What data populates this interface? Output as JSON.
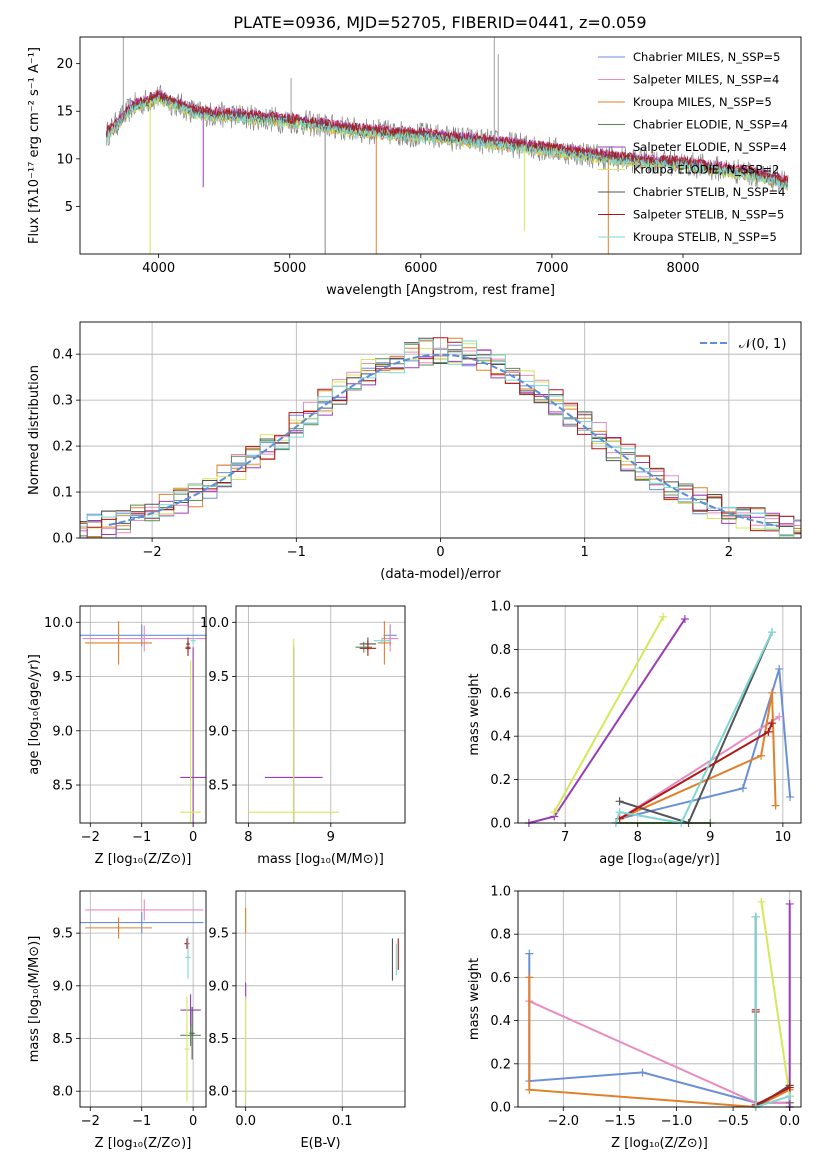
{
  "figure_title": "PLATE=0936, MJD=52705, FIBERID=0441, z=0.059",
  "colors": {
    "Chabrier MILES": "#6b8fd6",
    "Salpeter MILES": "#e88cbf",
    "Kroupa MILES": "#e0802a",
    "Chabrier ELODIE": "#5a8a50",
    "Salpeter ELODIE": "#9a3cb8",
    "Kroupa ELODIE": "#d4e85a",
    "Chabrier STELIB": "#555555",
    "Salpeter STELIB": "#b01818",
    "Kroupa STELIB": "#7fd6d6",
    "data": "#888888",
    "normal": "#5b8fd9"
  },
  "chart_data": [
    {
      "id": "spectrum",
      "type": "line",
      "title": "PLATE=0936, MJD=52705, FIBERID=0441, z=0.059",
      "xlabel": "wavelength [Angstrom, rest frame]",
      "ylabel": "Flux [fλ10⁻¹⁷ erg cm⁻² s⁻¹ A⁻¹]",
      "xlim": [
        3400,
        8900
      ],
      "ylim": [
        0,
        22.8
      ],
      "xticks": [
        4000,
        5000,
        6000,
        7000,
        8000
      ],
      "yticks": [
        5,
        10,
        15,
        20
      ],
      "grid": false,
      "legend_position": "top-right",
      "legend": [
        "Chabrier MILES, N_SSP=5",
        "Salpeter MILES, N_SSP=4",
        "Kroupa MILES, N_SSP=5",
        "Chabrier ELODIE, N_SSP=4",
        "Salpeter ELODIE, N_SSP=4",
        "Kroupa ELODIE, N_SSP=2",
        "Chabrier STELIB, N_SSP=4",
        "Salpeter STELIB, N_SSP=5",
        "Kroupa STELIB, N_SSP=5"
      ],
      "continuum": {
        "x": [
          3600,
          3800,
          4000,
          4300,
          4600,
          5000,
          5500,
          6000,
          6500,
          7000,
          7500,
          8000,
          8500,
          8800
        ],
        "y": [
          12.5,
          15.5,
          16.5,
          14.8,
          14.5,
          14.0,
          13.0,
          12.5,
          11.8,
          11.0,
          10.0,
          9.5,
          8.5,
          7.5
        ]
      },
      "dips": [
        {
          "x": 3935,
          "y": 0
        },
        {
          "x": 4340,
          "y": 7.0
        },
        {
          "x": 5270,
          "y": 0
        },
        {
          "x": 5660,
          "y": 0
        },
        {
          "x": 6790,
          "y": 2.4
        },
        {
          "x": 7430,
          "y": 0
        }
      ],
      "spikes": [
        {
          "x": 3730,
          "y": 22.8
        },
        {
          "x": 6560,
          "y": 22.8
        },
        {
          "x": 6590,
          "y": 21.0
        },
        {
          "x": 5010,
          "y": 18.5
        }
      ]
    },
    {
      "id": "residuals",
      "type": "line",
      "xlabel": "(data-model)/error",
      "ylabel": "Normed distribution",
      "xlim": [
        -2.5,
        2.5
      ],
      "ylim": [
        0,
        0.47
      ],
      "xticks": [
        -2,
        -1,
        0,
        1,
        2
      ],
      "yticks": [
        0.0,
        0.1,
        0.2,
        0.3,
        0.4
      ],
      "grid": true,
      "legend_position": "top-right",
      "legend": [
        "𝒩(0, 1)"
      ],
      "bin_width": 0.1
    },
    {
      "id": "age_vs_Z",
      "type": "scatter",
      "xlabel": "Z [log₁₀(Z/Z⊙)]",
      "ylabel": "age  [log₁₀(age/yr)]",
      "xlim": [
        -2.2,
        0.25
      ],
      "ylim": [
        8.15,
        10.15
      ],
      "xticks": [
        -2,
        -1,
        0
      ],
      "yticks": [
        8.5,
        9.0,
        9.5,
        10.0
      ],
      "grid": true,
      "points": [
        {
          "model": "Chabrier MILES",
          "x": -1.0,
          "y": 9.88,
          "xerr": 1.25,
          "yerr": 0.1
        },
        {
          "model": "Salpeter MILES",
          "x": -0.95,
          "y": 9.85,
          "xerr": 1.2,
          "yerr": 0.12
        },
        {
          "model": "Kroupa MILES",
          "x": -1.45,
          "y": 9.81,
          "xerr": 0.65,
          "yerr": 0.2
        },
        {
          "model": "Chabrier ELODIE",
          "x": -0.1,
          "y": 9.77,
          "xerr": 0.05,
          "yerr": 0.05
        },
        {
          "model": "Salpeter ELODIE",
          "x": 0.0,
          "y": 8.57,
          "xerr": 0.25,
          "yerr": 1.2
        },
        {
          "model": "Kroupa ELODIE",
          "x": -0.05,
          "y": 8.25,
          "xerr": 0.2,
          "yerr": 1.4
        },
        {
          "model": "Chabrier STELIB",
          "x": -0.1,
          "y": 9.8,
          "xerr": 0.04,
          "yerr": 0.06
        },
        {
          "model": "Salpeter STELIB",
          "x": -0.1,
          "y": 9.76,
          "xerr": 0.05,
          "yerr": 0.07
        },
        {
          "model": "Kroupa STELIB",
          "x": 0.0,
          "y": 9.83,
          "xerr": 0.05,
          "yerr": 0.03
        }
      ]
    },
    {
      "id": "age_vs_mass",
      "type": "scatter",
      "xlabel": "mass [log₁₀(M/M⊙)]",
      "ylabel": "",
      "xlim": [
        7.85,
        9.9
      ],
      "ylim": [
        8.15,
        10.15
      ],
      "xticks": [
        8,
        9
      ],
      "yticks": [
        8.5,
        9.0,
        9.5,
        10.0
      ],
      "grid": true,
      "points": [
        {
          "model": "Chabrier MILES",
          "x": 9.72,
          "y": 9.88,
          "xerr": 0.08,
          "yerr": 0.1
        },
        {
          "model": "Salpeter MILES",
          "x": 9.72,
          "y": 9.85,
          "xerr": 0.1,
          "yerr": 0.12
        },
        {
          "model": "Kroupa MILES",
          "x": 9.65,
          "y": 9.81,
          "xerr": 0.08,
          "yerr": 0.2
        },
        {
          "model": "Chabrier ELODIE",
          "x": 9.4,
          "y": 9.77,
          "xerr": 0.1,
          "yerr": 0.05
        },
        {
          "model": "Salpeter ELODIE",
          "x": 8.55,
          "y": 8.57,
          "xerr": 0.35,
          "yerr": 1.2
        },
        {
          "model": "Kroupa ELODIE",
          "x": 8.55,
          "y": 8.25,
          "xerr": 0.55,
          "yerr": 1.6
        },
        {
          "model": "Chabrier STELIB",
          "x": 9.45,
          "y": 9.8,
          "xerr": 0.1,
          "yerr": 0.06
        },
        {
          "model": "Salpeter STELIB",
          "x": 9.45,
          "y": 9.76,
          "xerr": 0.1,
          "yerr": 0.07
        },
        {
          "model": "Kroupa STELIB",
          "x": 9.62,
          "y": 9.83,
          "xerr": 0.1,
          "yerr": 0.03
        }
      ]
    },
    {
      "id": "weight_vs_age",
      "type": "line",
      "xlabel": "age  [log₁₀(age/yr)]",
      "ylabel": "mass weight",
      "xlim": [
        6.35,
        10.25
      ],
      "ylim": [
        0,
        1.0
      ],
      "xticks": [
        7,
        8,
        9,
        10
      ],
      "yticks": [
        0.0,
        0.2,
        0.4,
        0.6,
        0.8,
        1.0
      ],
      "grid": true,
      "series": [
        {
          "model": "Chabrier MILES",
          "points": [
            [
              7.75,
              0.02
            ],
            [
              9.45,
              0.16
            ],
            [
              9.95,
              0.71
            ],
            [
              10.1,
              0.12
            ]
          ]
        },
        {
          "model": "Salpeter MILES",
          "points": [
            [
              7.75,
              0.02
            ],
            [
              9.95,
              0.49
            ]
          ]
        },
        {
          "model": "Kroupa MILES",
          "points": [
            [
              7.75,
              0.02
            ],
            [
              9.7,
              0.31
            ],
            [
              9.85,
              0.6
            ],
            [
              9.9,
              0.08
            ]
          ]
        },
        {
          "model": "Chabrier ELODIE",
          "points": [
            [
              7.7,
              0.0
            ],
            [
              9.0,
              0.0
            ]
          ]
        },
        {
          "model": "Salpeter ELODIE",
          "points": [
            [
              6.5,
              0.0
            ],
            [
              6.85,
              0.03
            ],
            [
              8.65,
              0.94
            ]
          ]
        },
        {
          "model": "Kroupa ELODIE",
          "points": [
            [
              6.85,
              0.05
            ],
            [
              8.35,
              0.95
            ]
          ]
        },
        {
          "model": "Chabrier STELIB",
          "points": [
            [
              7.75,
              0.1
            ],
            [
              8.7,
              0.0
            ],
            [
              9.85,
              0.88
            ]
          ]
        },
        {
          "model": "Salpeter STELIB",
          "points": [
            [
              7.75,
              0.02
            ],
            [
              9.8,
              0.42
            ],
            [
              9.85,
              0.46
            ]
          ]
        },
        {
          "model": "Kroupa STELIB",
          "points": [
            [
              7.7,
              0.0
            ],
            [
              7.75,
              0.05
            ],
            [
              8.6,
              0.0
            ],
            [
              9.85,
              0.88
            ]
          ]
        }
      ]
    },
    {
      "id": "mass_vs_Z",
      "type": "scatter",
      "xlabel": "Z [log₁₀(Z/Z⊙)]",
      "ylabel": "mass [log₁₀(M/M⊙)]",
      "xlim": [
        -2.2,
        0.25
      ],
      "ylim": [
        7.85,
        9.9
      ],
      "xticks": [
        -2,
        -1,
        0
      ],
      "yticks": [
        8.0,
        8.5,
        9.0,
        9.5
      ],
      "grid": true,
      "points": [
        {
          "model": "Chabrier MILES",
          "x": -1.0,
          "y": 9.6,
          "xerr": 1.2,
          "yerr": 0.1
        },
        {
          "model": "Salpeter MILES",
          "x": -0.95,
          "y": 9.72,
          "xerr": 1.15,
          "yerr": 0.1
        },
        {
          "model": "Kroupa MILES",
          "x": -1.45,
          "y": 9.55,
          "xerr": 0.65,
          "yerr": 0.1
        },
        {
          "model": "Chabrier ELODIE",
          "x": -0.05,
          "y": 8.53,
          "xerr": 0.2,
          "yerr": 0.1
        },
        {
          "model": "Salpeter ELODIE",
          "x": -0.05,
          "y": 8.77,
          "xerr": 0.2,
          "yerr": 0.15
        },
        {
          "model": "Kroupa ELODIE",
          "x": -0.12,
          "y": 8.4,
          "xerr": 0.05,
          "yerr": 0.5
        },
        {
          "model": "Chabrier STELIB",
          "x": -0.02,
          "y": 8.55,
          "xerr": 0.05,
          "yerr": 0.25
        },
        {
          "model": "Salpeter STELIB",
          "x": -0.12,
          "y": 9.4,
          "xerr": 0.05,
          "yerr": 0.05
        },
        {
          "model": "Kroupa STELIB",
          "x": -0.1,
          "y": 9.27,
          "xerr": 0.05,
          "yerr": 0.2
        }
      ]
    },
    {
      "id": "mass_vs_EBV",
      "type": "scatter",
      "xlabel": "E(B-V)",
      "ylabel": "",
      "xlim": [
        -0.01,
        0.165
      ],
      "ylim": [
        7.85,
        9.9
      ],
      "xticks": [
        0.0,
        0.1
      ],
      "yticks": [
        8.0,
        8.5,
        9.0,
        9.5
      ],
      "grid": true,
      "points": [
        {
          "model": "Kroupa MILES",
          "x": 0.0,
          "y": 9.62,
          "xerr": 0.0,
          "yerr": 0.12
        },
        {
          "model": "Salpeter ELODIE",
          "x": 0.0,
          "y": 8.95,
          "xerr": 0.0,
          "yerr": 0.08
        },
        {
          "model": "Kroupa ELODIE",
          "x": 0.0,
          "y": 8.4,
          "xerr": 0.0,
          "yerr": 0.5
        },
        {
          "model": "Chabrier STELIB",
          "x": 0.152,
          "y": 9.25,
          "xerr": 0.0,
          "yerr": 0.2
        },
        {
          "model": "Salpeter STELIB",
          "x": 0.158,
          "y": 9.3,
          "xerr": 0.0,
          "yerr": 0.15
        },
        {
          "model": "Kroupa STELIB",
          "x": 0.156,
          "y": 9.25,
          "xerr": 0.0,
          "yerr": 0.15
        }
      ]
    },
    {
      "id": "weight_vs_Z",
      "type": "line",
      "xlabel": "Z [log₁₀(Z/Z⊙)]",
      "ylabel": "mass weight",
      "xlim": [
        -2.4,
        0.1
      ],
      "ylim": [
        0,
        1.0
      ],
      "xticks": [
        -2.0,
        -1.5,
        -1.0,
        -0.5,
        0.0
      ],
      "yticks": [
        0.0,
        0.2,
        0.4,
        0.6,
        0.8,
        1.0
      ],
      "grid": true,
      "series": [
        {
          "model": "Chabrier MILES",
          "points": [
            [
              -2.3,
              0.71
            ],
            [
              -2.3,
              0.12
            ],
            [
              -1.3,
              0.16
            ],
            [
              -0.3,
              0.02
            ],
            [
              0.0,
              0.02
            ]
          ]
        },
        {
          "model": "Salpeter MILES",
          "points": [
            [
              -2.3,
              0.49
            ],
            [
              -0.3,
              0.02
            ],
            [
              0.0,
              0.02
            ]
          ]
        },
        {
          "model": "Kroupa MILES",
          "points": [
            [
              -2.3,
              0.6
            ],
            [
              -2.3,
              0.08
            ],
            [
              -0.3,
              0.0
            ],
            [
              0.0,
              0.08
            ]
          ]
        },
        {
          "model": "Chabrier ELODIE",
          "points": [
            [
              0.0,
              0.0
            ],
            [
              0.0,
              0.02
            ]
          ]
        },
        {
          "model": "Salpeter ELODIE",
          "points": [
            [
              0.0,
              0.0
            ],
            [
              0.0,
              0.94
            ]
          ]
        },
        {
          "model": "Kroupa ELODIE",
          "points": [
            [
              -0.25,
              0.95
            ],
            [
              0.0,
              0.05
            ]
          ]
        },
        {
          "model": "Chabrier STELIB",
          "points": [
            [
              -0.3,
              0.88
            ],
            [
              -0.3,
              0.0
            ],
            [
              0.0,
              0.1
            ]
          ]
        },
        {
          "model": "Salpeter STELIB",
          "points": [
            [
              -0.3,
              0.45
            ],
            [
              -0.3,
              0.44
            ],
            [
              -0.3,
              0.01
            ],
            [
              0.0,
              0.09
            ]
          ]
        },
        {
          "model": "Kroupa STELIB",
          "points": [
            [
              -0.3,
              0.88
            ],
            [
              -0.3,
              0.0
            ],
            [
              0.0,
              0.05
            ]
          ]
        }
      ]
    }
  ]
}
